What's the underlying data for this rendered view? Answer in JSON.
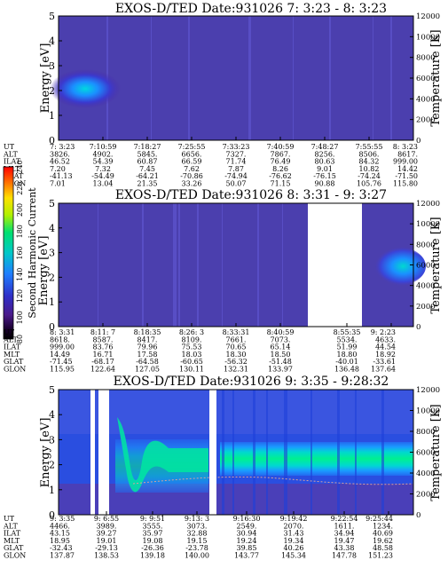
{
  "colorbar": {
    "label": "Second Harmonic Current",
    "ticks": [
      "80",
      "100",
      "120",
      "140",
      "160",
      "180",
      "200",
      "220",
      "240"
    ]
  },
  "chart_data": [
    {
      "type": "heatmap",
      "title": "EXOS-D/TED   Date:931026  7: 3:23 - 8: 3:23",
      "ylabel": "Energy [eV]",
      "ylabel_right": "Temperature [K]",
      "ylim": [
        0,
        5
      ],
      "yticks": [
        "0",
        "1",
        "2",
        "3",
        "4",
        "5"
      ],
      "y2lim": [
        0,
        12000
      ],
      "y2ticks": [
        "0",
        "2000",
        "4000",
        "6000",
        "8000",
        "10000",
        "12000"
      ],
      "orbit_table": {
        "row_labels": [
          "UT",
          "ALT",
          "ILAT",
          "MLT",
          "GLAT",
          "GLON"
        ],
        "columns": [
          [
            "7: 3:23",
            "3826.",
            "46.52",
            "7.20",
            "-41.13",
            "7.01"
          ],
          [
            "7:10:59",
            "4902.",
            "54.39",
            "7.32",
            "-54.49",
            "13.04"
          ],
          [
            "7:18:27",
            "5845.",
            "60.87",
            "7.45",
            "-64.21",
            "21.35"
          ],
          [
            "7:25:55",
            "6656.",
            "66.59",
            "7.62",
            "-70.86",
            "33.26"
          ],
          [
            "7:33:23",
            "7327.",
            "71.74",
            "7.87",
            "-74.94",
            "50.07"
          ],
          [
            "7:40:59",
            "7867.",
            "76.49",
            "8.26",
            "-76.62",
            "71.15"
          ],
          [
            "7:48:27",
            "8256.",
            "80.63",
            "9.01",
            "-76.15",
            "90.88"
          ],
          [
            "7:55:55",
            "8506.",
            "84.32",
            "10.82",
            "-74.24",
            "105.76"
          ],
          [
            "8: 3:23",
            "8617.",
            "999.00",
            "14.42",
            "-71.50",
            "115.80"
          ]
        ]
      }
    },
    {
      "type": "heatmap",
      "title": "EXOS-D/TED   Date:931026  8: 3:31 - 9: 3:27",
      "ylabel": "Energy [eV]",
      "ylabel_right": "Temperature [K]",
      "ylim": [
        0,
        5
      ],
      "yticks": [
        "0",
        "1",
        "2",
        "3",
        "4",
        "5"
      ],
      "y2lim": [
        0,
        12000
      ],
      "y2ticks": [
        "0",
        "2000",
        "4000",
        "6000",
        "8000",
        "10000",
        "12000"
      ],
      "orbit_table": {
        "row_labels": [
          "UT",
          "ALT",
          "ILAT",
          "MLT",
          "GLAT",
          "GLON"
        ],
        "columns": [
          [
            "8: 3:31",
            "8618.",
            "999.00",
            "14.49",
            "-71.45",
            "115.95"
          ],
          [
            "8:11: 7",
            "8587.",
            "83.76",
            "16.71",
            "-68.17",
            "122.64"
          ],
          [
            "8:18:35",
            "8417.",
            "79.96",
            "17.58",
            "-64.58",
            "127.05"
          ],
          [
            "8:26: 3",
            "8109.",
            "75.53",
            "18.03",
            "-60.65",
            "130.11"
          ],
          [
            "8:33:31",
            "7661.",
            "70.65",
            "18.30",
            "-56.32",
            "132.31"
          ],
          [
            "8:40:59",
            "7073.",
            "65.14",
            "18.50",
            "-51.48",
            "133.97"
          ],
          [
            "8:55:35",
            "5534.",
            "51.99",
            "18.80",
            "-40.01",
            "136.48"
          ],
          [
            "9: 2:23",
            "4633.",
            "44.54",
            "18.92",
            "-33.61",
            "137.64"
          ]
        ]
      }
    },
    {
      "type": "heatmap",
      "title": "EXOS-D/TED   Date:931026  9: 3:35 - 9:28:32",
      "ylabel": "Energy [eV]",
      "ylabel_right": "Temperature [K]",
      "ylim": [
        0,
        5
      ],
      "yticks": [
        "0",
        "1",
        "2",
        "3",
        "4",
        "5"
      ],
      "y2lim": [
        0,
        12000
      ],
      "y2ticks": [
        "0",
        "2000",
        "4000",
        "6000",
        "8000",
        "10000",
        "12000"
      ],
      "orbit_table": {
        "row_labels": [
          "UT",
          "ALT",
          "ILAT",
          "MLT",
          "GLAT",
          "GLON"
        ],
        "columns": [
          [
            "9: 3:35",
            "4466.",
            "43.15",
            "18.95",
            "-32.43",
            "137.87"
          ],
          [
            "9: 6:55",
            "3989.",
            "39.27",
            "19.01",
            "-29.13",
            "138.53"
          ],
          [
            "9: 9:51",
            "3555.",
            "35.97",
            "19.08",
            "-26.36",
            "139.18"
          ],
          [
            "9:13: 3",
            "3073.",
            "32.88",
            "19.15",
            "-23.78",
            "140.00"
          ],
          [
            "9:16:30",
            "2549.",
            "30.94",
            "19.24",
            "39.85",
            "143.77"
          ],
          [
            "9:19:42",
            "2070.",
            "31.43",
            "19.34",
            "40.26",
            "145.34"
          ],
          [
            "9:22:54",
            "1611.",
            "34.94",
            "19.47",
            "43.38",
            "147.78"
          ],
          [
            "9:25:44",
            "1234.",
            "40.69",
            "19.62",
            "48.58",
            "151.23"
          ]
        ]
      }
    }
  ]
}
